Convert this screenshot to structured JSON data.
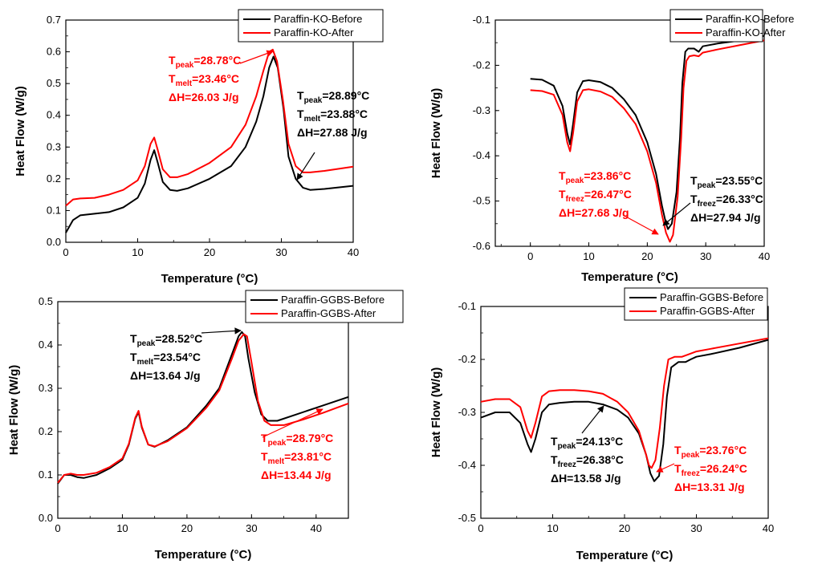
{
  "chart_data": [
    {
      "type": "line",
      "xlabel": "Temperature (°C)",
      "ylabel": "Heat Flow (W/g)",
      "xlim": [
        0,
        40
      ],
      "ylim": [
        0.0,
        0.7
      ],
      "xticks": [
        "0",
        "10",
        "20",
        "30",
        "40"
      ],
      "yticks": [
        "0.0",
        "0.1",
        "0.2",
        "0.3",
        "0.4",
        "0.5",
        "0.6",
        "0.7"
      ],
      "legend_position": "top-right",
      "series": [
        {
          "name": "Paraffin-KO-Before",
          "color": "#000000",
          "x": [
            0,
            1,
            2,
            4,
            6,
            8,
            10,
            11,
            11.8,
            12.3,
            12.8,
            13.5,
            14.5,
            15.5,
            17,
            20,
            23,
            25,
            26.5,
            27.5,
            28.3,
            28.9,
            29.5,
            30.3,
            31,
            32,
            33,
            34,
            36,
            40
          ],
          "values": [
            0.03,
            0.07,
            0.085,
            0.09,
            0.095,
            0.11,
            0.14,
            0.185,
            0.26,
            0.29,
            0.25,
            0.19,
            0.165,
            0.162,
            0.17,
            0.2,
            0.24,
            0.3,
            0.38,
            0.46,
            0.55,
            0.585,
            0.55,
            0.42,
            0.27,
            0.2,
            0.172,
            0.165,
            0.168,
            0.178
          ]
        },
        {
          "name": "Paraffin-KO-After",
          "color": "#ff0000",
          "x": [
            0,
            1,
            2,
            4,
            6,
            8,
            10,
            11,
            11.8,
            12.3,
            12.8,
            13.5,
            14.5,
            15.5,
            17,
            20,
            23,
            25,
            26.5,
            27.5,
            28.3,
            28.8,
            29.4,
            30.2,
            31,
            32,
            33,
            34,
            36,
            40
          ],
          "values": [
            0.115,
            0.135,
            0.138,
            0.14,
            0.15,
            0.165,
            0.195,
            0.24,
            0.31,
            0.33,
            0.29,
            0.23,
            0.205,
            0.205,
            0.215,
            0.25,
            0.3,
            0.37,
            0.46,
            0.54,
            0.6,
            0.607,
            0.57,
            0.45,
            0.31,
            0.24,
            0.22,
            0.22,
            0.225,
            0.238
          ]
        }
      ],
      "annotations": [
        {
          "color": "#ff0000",
          "lines": [
            {
              "main": "T",
              "sub": "peak",
              "rest": "=28.78°C"
            },
            {
              "main": "T",
              "sub": "melt",
              "rest": "=23.46°C"
            },
            {
              "main": "ΔH=26.03 J/g",
              "sub": "",
              "rest": ""
            }
          ]
        },
        {
          "color": "#000000",
          "lines": [
            {
              "main": "T",
              "sub": "peak",
              "rest": "=28.89°C"
            },
            {
              "main": "T",
              "sub": "melt",
              "rest": "=23.88°C"
            },
            {
              "main": "ΔH=27.88 J/g",
              "sub": "",
              "rest": ""
            }
          ]
        }
      ]
    },
    {
      "type": "line",
      "xlabel": "Temperature (°C)",
      "ylabel": "Heat Flow (W/g)",
      "xlim": [
        -6,
        40
      ],
      "ylim": [
        -0.6,
        -0.1
      ],
      "xticks": [
        "0",
        "10",
        "20",
        "30",
        "40"
      ],
      "yticks": [
        "-0.6",
        "-0.5",
        "-0.4",
        "-0.3",
        "-0.2",
        "-0.1"
      ],
      "legend_position": "top-right",
      "series": [
        {
          "name": "Paraffin-KO-Before",
          "color": "#000000",
          "x": [
            0,
            2,
            4,
            5.5,
            6.3,
            6.8,
            7.3,
            8,
            9,
            10,
            12,
            14,
            16,
            18,
            20,
            21.5,
            22.5,
            23.2,
            23.55,
            24.2,
            25,
            25.6,
            26,
            26.5,
            27,
            28,
            28.8,
            29.5,
            32,
            36,
            40
          ],
          "values": [
            -0.23,
            -0.232,
            -0.245,
            -0.29,
            -0.35,
            -0.375,
            -0.33,
            -0.26,
            -0.235,
            -0.233,
            -0.237,
            -0.25,
            -0.275,
            -0.31,
            -0.37,
            -0.44,
            -0.51,
            -0.55,
            -0.562,
            -0.55,
            -0.48,
            -0.36,
            -0.24,
            -0.17,
            -0.163,
            -0.163,
            -0.17,
            -0.158,
            -0.152,
            -0.145,
            -0.135
          ]
        },
        {
          "name": "Paraffin-KO-After",
          "color": "#ff0000",
          "x": [
            0,
            2,
            4,
            5.5,
            6.3,
            6.8,
            7.3,
            8,
            9,
            10,
            12,
            14,
            16,
            18,
            20,
            21.5,
            22.5,
            23.2,
            23.86,
            24.4,
            25.2,
            25.8,
            26.2,
            26.7,
            27.2,
            28,
            28.8,
            29.5,
            32,
            36,
            40
          ],
          "values": [
            -0.255,
            -0.257,
            -0.265,
            -0.31,
            -0.37,
            -0.39,
            -0.35,
            -0.28,
            -0.255,
            -0.253,
            -0.258,
            -0.27,
            -0.295,
            -0.33,
            -0.39,
            -0.46,
            -0.53,
            -0.57,
            -0.59,
            -0.575,
            -0.49,
            -0.36,
            -0.25,
            -0.19,
            -0.18,
            -0.178,
            -0.18,
            -0.172,
            -0.165,
            -0.155,
            -0.145
          ]
        }
      ],
      "annotations": [
        {
          "color": "#ff0000",
          "lines": [
            {
              "main": "T",
              "sub": "peak",
              "rest": "=23.86°C"
            },
            {
              "main": "T",
              "sub": "freez",
              "rest": "=26.47°C"
            },
            {
              "main": "ΔH=27.68 J/g",
              "sub": "",
              "rest": ""
            }
          ]
        },
        {
          "color": "#000000",
          "lines": [
            {
              "main": "T",
              "sub": "peak",
              "rest": "=23.55°C"
            },
            {
              "main": "T",
              "sub": "freez",
              "rest": "=26.33°C"
            },
            {
              "main": "ΔH=27.94 J/g",
              "sub": "",
              "rest": ""
            }
          ]
        }
      ]
    },
    {
      "type": "line",
      "xlabel": "Temperature (°C)",
      "ylabel": "Heat Flow (W/g)",
      "xlim": [
        0,
        45
      ],
      "ylim": [
        0.0,
        0.5
      ],
      "xticks": [
        "0",
        "10",
        "20",
        "30",
        "40"
      ],
      "yticks": [
        "0.0",
        "0.1",
        "0.2",
        "0.3",
        "0.4",
        "0.5"
      ],
      "legend_position": "top-right",
      "series": [
        {
          "name": "Paraffin-GGBS-Before",
          "color": "#000000",
          "x": [
            0,
            1,
            2,
            3,
            4,
            6,
            8,
            10,
            11,
            12,
            12.5,
            13,
            14,
            15,
            17,
            20,
            23,
            25,
            27,
            28,
            28.5,
            29,
            29.5,
            30.5,
            31.5,
            32.5,
            34,
            37,
            40,
            45
          ],
          "values": [
            0.08,
            0.1,
            0.1,
            0.095,
            0.093,
            0.1,
            0.115,
            0.135,
            0.17,
            0.23,
            0.245,
            0.21,
            0.17,
            0.165,
            0.18,
            0.21,
            0.26,
            0.3,
            0.38,
            0.42,
            0.43,
            0.42,
            0.37,
            0.29,
            0.24,
            0.225,
            0.225,
            0.24,
            0.255,
            0.28
          ]
        },
        {
          "name": "Paraffin-GGBS-After",
          "color": "#ff0000",
          "x": [
            0,
            1,
            2,
            3,
            4,
            6,
            8,
            10,
            11,
            12,
            12.5,
            13,
            14,
            15,
            17,
            20,
            23,
            25,
            27,
            28,
            28.8,
            29.3,
            30,
            31,
            32,
            33,
            35,
            38,
            41,
            45
          ],
          "values": [
            0.082,
            0.1,
            0.103,
            0.1,
            0.1,
            0.105,
            0.118,
            0.138,
            0.172,
            0.232,
            0.248,
            0.212,
            0.17,
            0.166,
            0.178,
            0.208,
            0.255,
            0.295,
            0.37,
            0.41,
            0.425,
            0.42,
            0.36,
            0.27,
            0.225,
            0.215,
            0.215,
            0.228,
            0.243,
            0.265
          ]
        }
      ],
      "annotations": [
        {
          "color": "#000000",
          "lines": [
            {
              "main": "T",
              "sub": "peak",
              "rest": "=28.52°C"
            },
            {
              "main": "T",
              "sub": "melt",
              "rest": "=23.54°C"
            },
            {
              "main": "ΔH=13.64 J/g",
              "sub": "",
              "rest": ""
            }
          ]
        },
        {
          "color": "#ff0000",
          "lines": [
            {
              "main": "T",
              "sub": "peak",
              "rest": "=28.79°C"
            },
            {
              "main": "T",
              "sub": "melt",
              "rest": "=23.81°C"
            },
            {
              "main": "ΔH=13.44 J/g",
              "sub": "",
              "rest": ""
            }
          ]
        }
      ]
    },
    {
      "type": "line",
      "xlabel": "Temperature (°C)",
      "ylabel": "Heat Flow (W/g)",
      "xlim": [
        0,
        40
      ],
      "ylim": [
        -0.5,
        -0.1
      ],
      "xticks": [
        "0",
        "10",
        "20",
        "30",
        "40"
      ],
      "yticks": [
        "-0.5",
        "-0.4",
        "-0.3",
        "-0.2",
        "-0.1"
      ],
      "legend_position": "top-right",
      "series": [
        {
          "name": "Paraffin-GGBS-Before",
          "color": "#000000",
          "x": [
            0,
            2,
            4,
            5.5,
            6.5,
            7,
            7.6,
            8.5,
            9.5,
            11,
            13,
            15,
            17,
            19,
            20.5,
            22,
            23,
            23.6,
            24.13,
            24.8,
            25.4,
            25.9,
            26.5,
            27.5,
            28.5,
            29.2,
            30,
            32,
            36,
            40
          ],
          "values": [
            -0.31,
            -0.3,
            -0.3,
            -0.32,
            -0.36,
            -0.375,
            -0.35,
            -0.3,
            -0.285,
            -0.282,
            -0.28,
            -0.28,
            -0.285,
            -0.295,
            -0.31,
            -0.34,
            -0.38,
            -0.415,
            -0.43,
            -0.42,
            -0.36,
            -0.27,
            -0.215,
            -0.205,
            -0.205,
            -0.2,
            -0.195,
            -0.19,
            -0.178,
            -0.163
          ]
        },
        {
          "name": "Paraffin-GGBS-After",
          "color": "#ff0000",
          "x": [
            0,
            2,
            4,
            5.5,
            6.5,
            7,
            7.6,
            8.5,
            9.5,
            11,
            13,
            15,
            17,
            19,
            20.5,
            22,
            23,
            23.4,
            23.76,
            24.3,
            24.9,
            25.5,
            26.1,
            27,
            28,
            29,
            30,
            32,
            36,
            40
          ],
          "values": [
            -0.28,
            -0.275,
            -0.275,
            -0.29,
            -0.335,
            -0.348,
            -0.32,
            -0.27,
            -0.26,
            -0.258,
            -0.258,
            -0.26,
            -0.265,
            -0.28,
            -0.3,
            -0.335,
            -0.38,
            -0.4,
            -0.405,
            -0.39,
            -0.33,
            -0.25,
            -0.2,
            -0.195,
            -0.195,
            -0.19,
            -0.185,
            -0.18,
            -0.17,
            -0.16
          ]
        }
      ],
      "annotations": [
        {
          "color": "#000000",
          "lines": [
            {
              "main": "T",
              "sub": "peak",
              "rest": "=24.13°C"
            },
            {
              "main": "T",
              "sub": "freez",
              "rest": "=26.38°C"
            },
            {
              "main": "ΔH=13.58 J/g",
              "sub": "",
              "rest": ""
            }
          ]
        },
        {
          "color": "#ff0000",
          "lines": [
            {
              "main": "T",
              "sub": "peak",
              "rest": "=23.76°C"
            },
            {
              "main": "T",
              "sub": "freez",
              "rest": "=26.24°C"
            },
            {
              "main": "ΔH=13.31 J/g",
              "sub": "",
              "rest": ""
            }
          ]
        }
      ]
    }
  ]
}
